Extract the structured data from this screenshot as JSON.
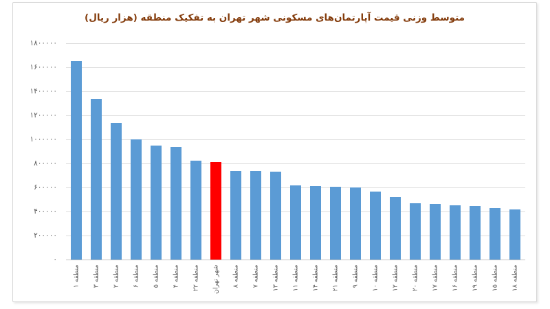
{
  "chart_data": {
    "type": "bar",
    "title": "متوسط وزنی قیمت آپارتمان‌های مسکونی شهر تهران به تفکیک منطقه (هزار ریال)",
    "title_color": "#843C0C",
    "categories": [
      "منطقه ۱",
      "منطقه ۳",
      "منطقه ۲",
      "منطقه ۶",
      "منطقه ۵",
      "منطقه ۴",
      "منطقه ۲۲",
      "شهر تهران",
      "منطقه ۸",
      "منطقه ۷",
      "منطقه ۱۳",
      "منطقه ۱۱",
      "منطقه ۱۴",
      "منطقه ۲۱",
      "منطقه ۹",
      "منطقه ۱۰",
      "منطقه ۱۲",
      "منطقه ۲۰",
      "منطقه ۱۷",
      "منطقه ۱۶",
      "منطقه ۱۹",
      "منطقه ۱۵",
      "منطقه ۱۸"
    ],
    "values": [
      1650000,
      1340000,
      1140000,
      1000000,
      950000,
      940000,
      825000,
      810000,
      740000,
      735000,
      730000,
      620000,
      612000,
      606000,
      598000,
      568000,
      520000,
      467000,
      463000,
      450000,
      444000,
      430000,
      417000
    ],
    "highlight_index": 7,
    "highlight_label": "شهر تهران",
    "bar_color": "#5B9BD5",
    "highlight_color": "#FF0000",
    "xlabel": "",
    "ylabel": "",
    "ylim": [
      0,
      1800000
    ],
    "ytick_step": 200000,
    "ytick_labels_bottom_to_top": [
      "۰",
      "۲۰۰۰۰۰",
      "۴۰۰۰۰۰",
      "۶۰۰۰۰۰",
      "۸۰۰۰۰۰",
      "۱۰۰۰۰۰۰",
      "۱۲۰۰۰۰۰",
      "۱۴۰۰۰۰۰",
      "۱۶۰۰۰۰۰",
      "۱۸۰۰۰۰۰"
    ],
    "grid": true,
    "legend": "none"
  }
}
